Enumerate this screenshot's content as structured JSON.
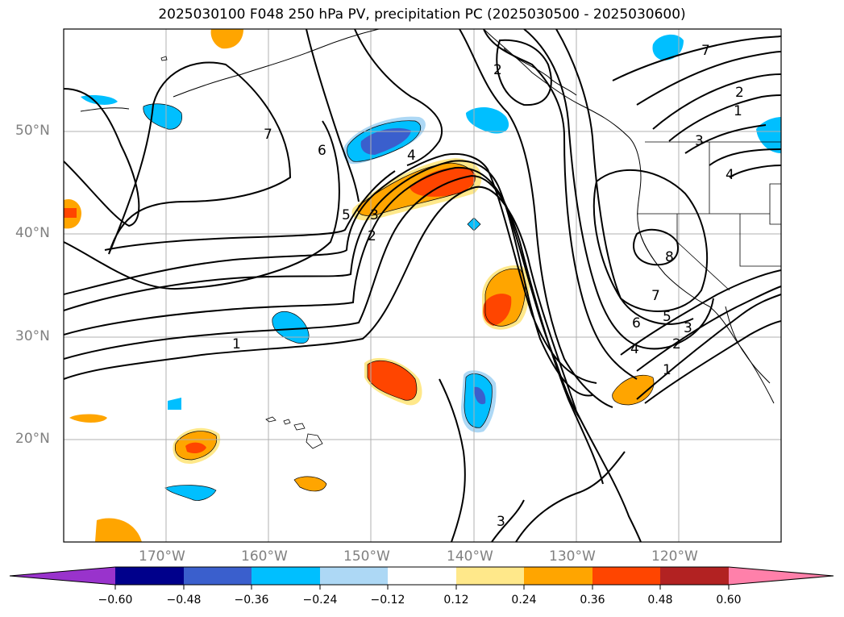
{
  "title": "2025030100 F048 250 hPa PV, precipitation PC (2025030500 - 2025030600)",
  "axes": {
    "lat_labels": [
      "50°N",
      "40°N",
      "30°N",
      "20°N"
    ],
    "lon_labels": [
      "170°W",
      "160°W",
      "150°W",
      "140°W",
      "130°W",
      "120°W"
    ]
  },
  "contour_labels": [
    "7",
    "6",
    "5",
    "4",
    "3",
    "2",
    "1",
    "1",
    "2",
    "3",
    "4",
    "5",
    "6",
    "7",
    "8",
    "7",
    "2",
    "1",
    "3",
    "4",
    "2",
    "3"
  ],
  "colorbar": {
    "tick_labels": [
      "-0.60",
      "-0.48",
      "-0.36",
      "-0.24",
      "-0.12",
      "0.12",
      "0.24",
      "0.36",
      "0.48",
      "0.60"
    ],
    "colors": [
      "#9933cc",
      "#00008b",
      "#3a5fcd",
      "#00bfff",
      "#add8f5",
      "#ffffff",
      "#ffe88a",
      "#ffa500",
      "#ff4500",
      "#b22222",
      "#ff80aa"
    ]
  }
}
